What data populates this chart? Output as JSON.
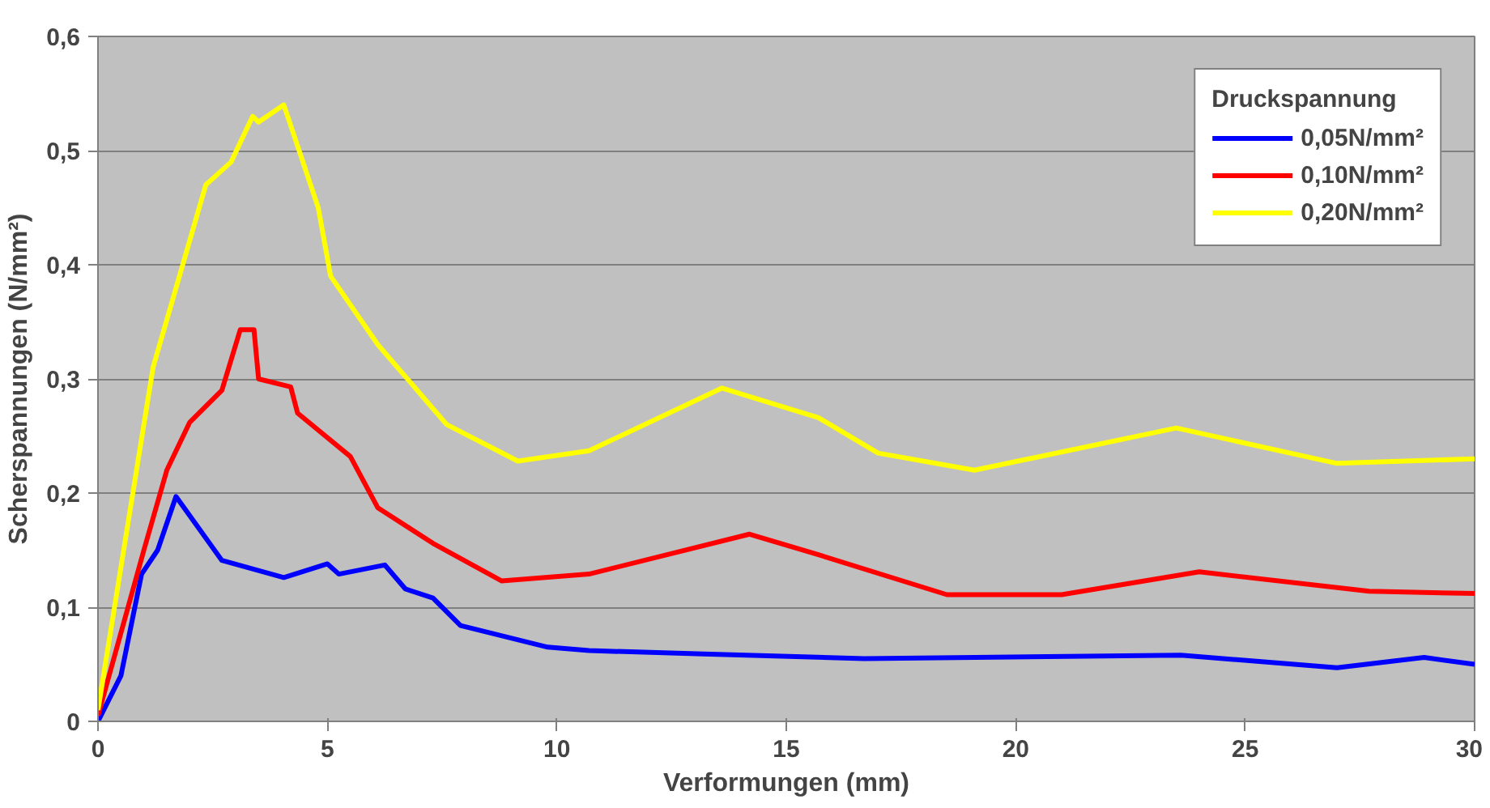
{
  "chart_data": {
    "type": "line",
    "xlabel": "Verformungen (mm)",
    "ylabel": "Scherspannungen (N/mm²)",
    "legend_title": "Druckspannung",
    "legend": "top right",
    "grid": "y",
    "line_style": "solid",
    "marker": "none",
    "xlim": [
      0,
      30
    ],
    "xticks": [
      0,
      5,
      10,
      15,
      20,
      25,
      30
    ],
    "ylim": [
      0,
      0.6
    ],
    "yticks": [
      0,
      {
        "value": 0.1,
        "label": "0,1"
      },
      {
        "value": 0.2,
        "label": "0,2"
      },
      {
        "value": 0.3,
        "label": "0,3"
      },
      {
        "value": 0.4,
        "label": "0,4"
      },
      {
        "value": 0.5,
        "label": "0,5"
      },
      {
        "value": 0.6,
        "label": "0,6"
      }
    ],
    "series": [
      {
        "name": "0,05N/mm²",
        "color": "#0000ff",
        "x": [
          0,
          0.5,
          0.95,
          1.3,
          1.7,
          2.7,
          4.05,
          5.0,
          5.25,
          6.25,
          6.7,
          7.3,
          7.9,
          9.8,
          10.7,
          13.2,
          16.7,
          23.6,
          27,
          28.9,
          30
        ],
        "values": [
          0,
          0.04,
          0.129,
          0.15,
          0.197,
          0.141,
          0.126,
          0.138,
          0.129,
          0.137,
          0.116,
          0.108,
          0.084,
          0.065,
          0.062,
          0.059,
          0.055,
          0.058,
          0.047,
          0.056,
          0.05
        ]
      },
      {
        "name": "0,10N/mm²",
        "color": "#ff0000",
        "x": [
          0,
          1,
          1.5,
          2,
          2.7,
          3.1,
          3.4,
          3.5,
          4.2,
          4.35,
          5.5,
          6.1,
          7.3,
          8.8,
          10.7,
          14.2,
          15.7,
          18.5,
          21,
          24,
          27.7,
          30
        ],
        "values": [
          0.005,
          0.15,
          0.22,
          0.262,
          0.29,
          0.343,
          0.343,
          0.3,
          0.293,
          0.27,
          0.232,
          0.187,
          0.156,
          0.123,
          0.129,
          0.164,
          0.146,
          0.111,
          0.111,
          0.131,
          0.114,
          0.112
        ]
      },
      {
        "name": "0,20N/mm²",
        "color": "#ffff00",
        "x": [
          0,
          1.2,
          2.35,
          2.9,
          3.37,
          3.5,
          4.05,
          4.3,
          4.8,
          5.07,
          6.1,
          7.6,
          9.15,
          10.7,
          13.6,
          15.7,
          17,
          19.1,
          23.5,
          27,
          30
        ],
        "values": [
          0.01,
          0.31,
          0.47,
          0.49,
          0.53,
          0.525,
          0.54,
          0.51,
          0.45,
          0.39,
          0.33,
          0.26,
          0.228,
          0.237,
          0.292,
          0.266,
          0.235,
          0.22,
          0.257,
          0.226,
          0.23
        ]
      }
    ]
  }
}
